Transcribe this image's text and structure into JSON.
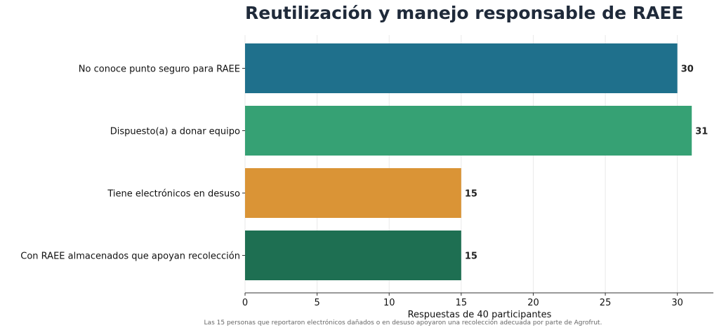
{
  "chart_data": {
    "type": "bar",
    "orientation": "horizontal",
    "title": "Reutilización y manejo responsable de RAEE",
    "xlabel": "Respuestas de 40 participantes",
    "ylabel": "",
    "note": "Las 15 personas que reportaron electrónicos dañados o en desuso apoyaron una recolección adecuada por parte de Agrofrut.",
    "categories": [
      "No conoce punto seguro para RAEE",
      "Dispuesto(a) a donar equipo",
      "Tiene electrónicos en desuso",
      "Con RAEE almacenados que apoyan recolección"
    ],
    "values": [
      30,
      31,
      15,
      15
    ],
    "colors": [
      "#186b88",
      "#2f9e70",
      "#d9912f",
      "#176a4c"
    ],
    "xlim": [
      0,
      32.5
    ],
    "xticks": [
      0,
      5,
      10,
      15,
      20,
      25,
      30
    ],
    "grid": true
  }
}
